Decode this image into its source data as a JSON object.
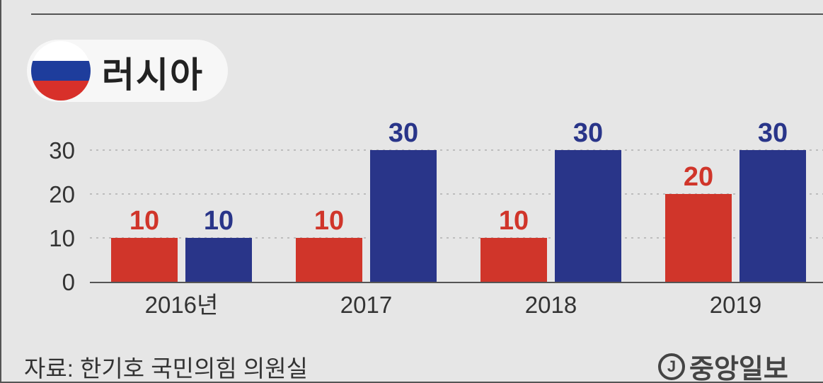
{
  "country": {
    "name": "러시아",
    "flag_colors": [
      "#ffffff",
      "#1e3d9c",
      "#d8302a"
    ]
  },
  "source": "자료: 한기호 국민의힘 의원실",
  "logo": {
    "mark": "J",
    "text": "중앙일보"
  },
  "colors": {
    "series_a": "#d0352a",
    "series_b": "#293589",
    "grid": "#bdbdbd",
    "axis": "#555555"
  },
  "chart_data": {
    "type": "bar",
    "categories": [
      "2016년",
      "2017",
      "2018",
      "2019"
    ],
    "series": [
      {
        "values": [
          10,
          10,
          10,
          20
        ]
      },
      {
        "values": [
          10,
          30,
          30,
          30
        ]
      }
    ],
    "yticks": [
      0,
      10,
      20,
      30
    ],
    "ylim": [
      0,
      30
    ],
    "grid": true
  }
}
